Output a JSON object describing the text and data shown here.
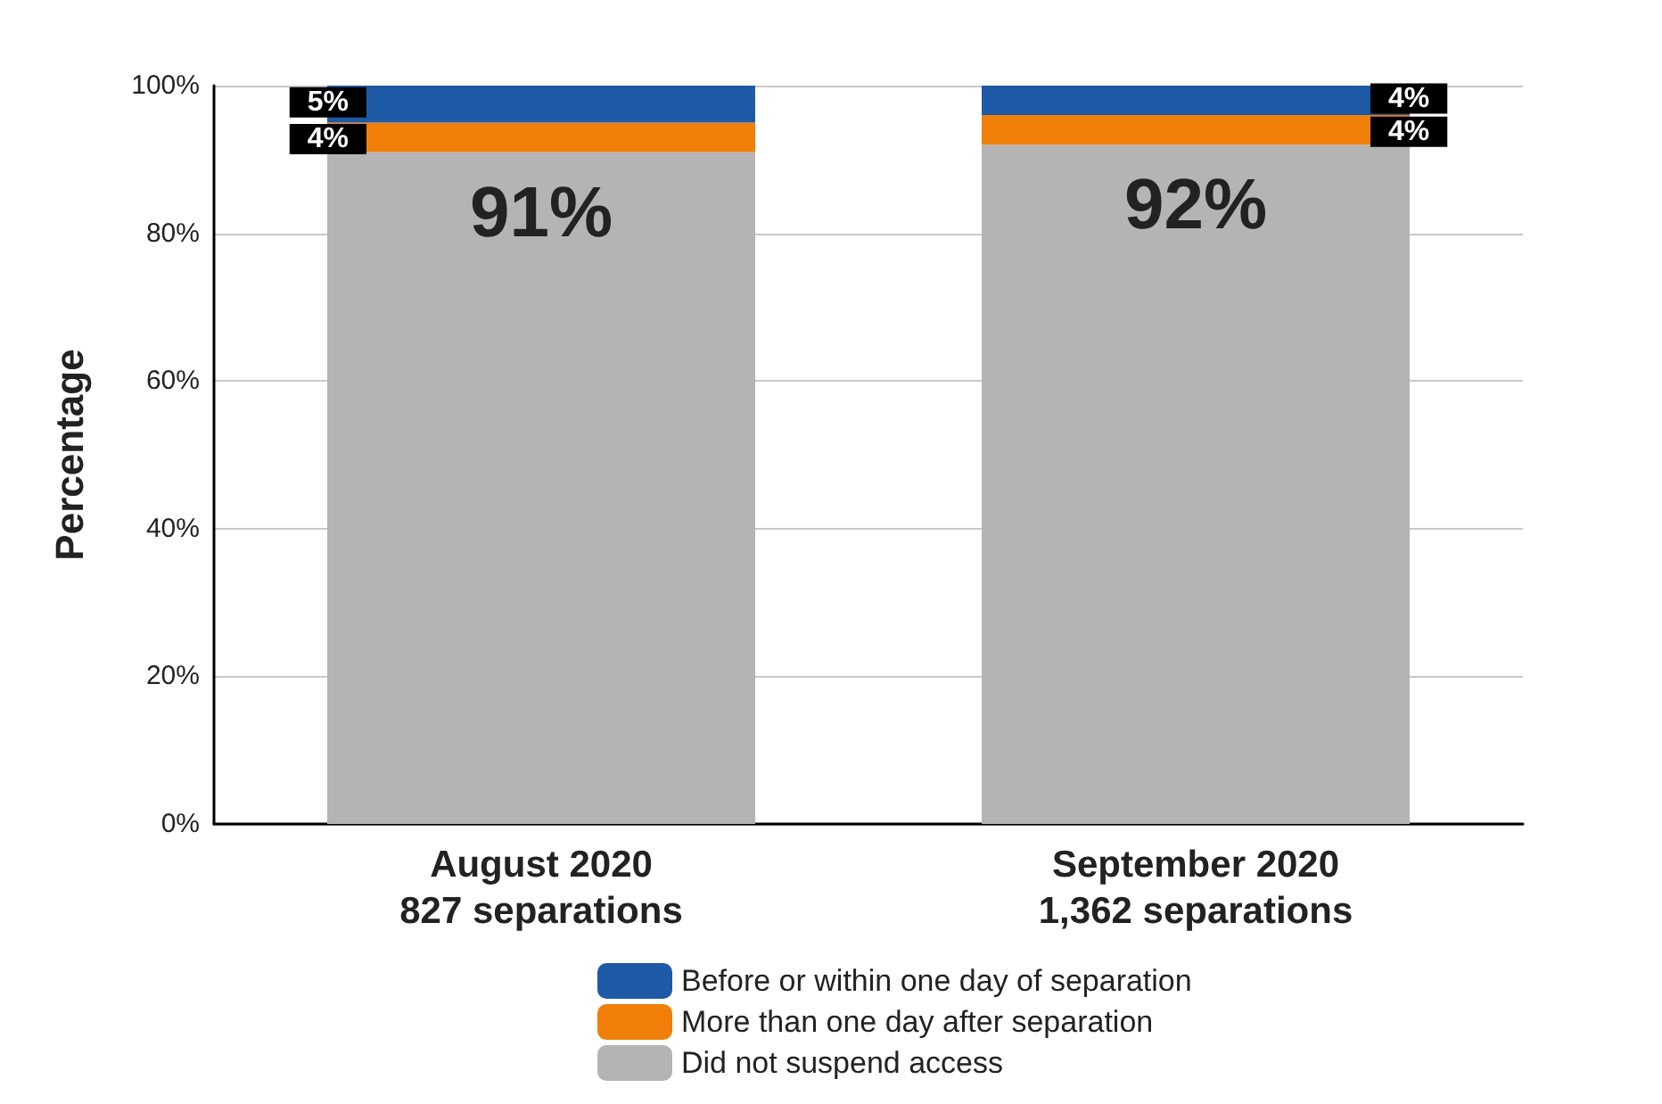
{
  "chart_data": {
    "type": "bar",
    "stacked": true,
    "ylabel": "Percentage",
    "categories": [
      "August 2020\n827 separations",
      "September 2020\n1,362 separations"
    ],
    "series": [
      {
        "name": "Did not suspend access",
        "color": "#b4b4b4",
        "values": [
          91,
          92
        ],
        "value_labels": [
          "91%",
          "92%"
        ]
      },
      {
        "name": "More than one day after separation",
        "color": "#f07f09",
        "values": [
          4,
          4
        ],
        "value_labels": [
          "4%",
          "4%"
        ]
      },
      {
        "name": "Before or within one day of separation",
        "color": "#1f5aa6",
        "values": [
          5,
          4
        ],
        "value_labels": [
          "5%",
          "4%"
        ]
      }
    ],
    "ylim": [
      0,
      100
    ],
    "yticks": [
      {
        "value": 0,
        "label": "0%"
      },
      {
        "value": 20,
        "label": "20%"
      },
      {
        "value": 40,
        "label": "40%"
      },
      {
        "value": 60,
        "label": "60%"
      },
      {
        "value": 80,
        "label": "80%"
      },
      {
        "value": 100,
        "label": "100%"
      }
    ],
    "grid": "y",
    "legend": "bottom"
  }
}
